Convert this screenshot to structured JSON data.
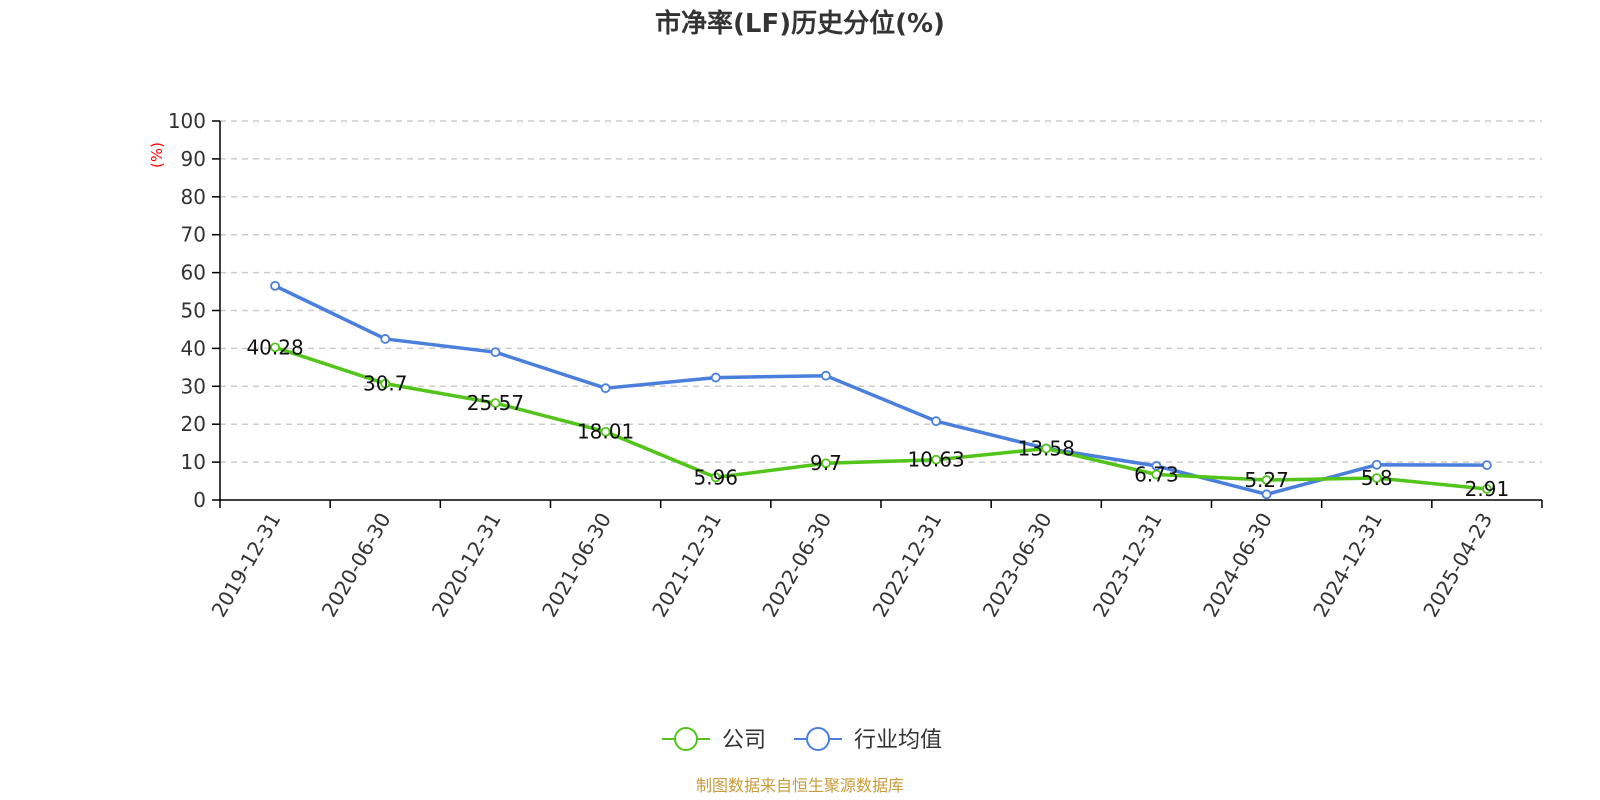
{
  "chart_data": {
    "type": "line",
    "title": "市净率(LF)历史分位(%)",
    "ylabel": "(%)",
    "ylim": [
      0,
      100
    ],
    "yticks": [
      0,
      10,
      20,
      30,
      40,
      50,
      60,
      70,
      80,
      90,
      100
    ],
    "categories": [
      "2019-12-31",
      "2020-06-30",
      "2020-12-31",
      "2021-06-30",
      "2021-12-31",
      "2022-06-30",
      "2022-12-31",
      "2023-06-30",
      "2023-12-31",
      "2024-06-30",
      "2024-12-31",
      "2025-04-23"
    ],
    "series": [
      {
        "name": "公司",
        "color": "#52c41a",
        "values": [
          40.28,
          30.7,
          25.57,
          18.01,
          5.96,
          9.7,
          10.63,
          13.58,
          6.73,
          5.27,
          5.8,
          2.91
        ],
        "labels": [
          "40.28",
          "30.7",
          "25.57",
          "18.01",
          "5.96",
          "9.7",
          "10.63",
          "13.58",
          "6.73",
          "5.27",
          "5.8",
          "2.91"
        ]
      },
      {
        "name": "行业均值",
        "color": "#4a7fdc",
        "values": [
          56.5,
          42.5,
          39.0,
          29.5,
          32.3,
          32.8,
          20.8,
          13.6,
          9.0,
          1.5,
          9.3,
          9.2
        ]
      }
    ],
    "grid": true,
    "legend": "bottom-center"
  },
  "source_note": "制图数据来自恒生聚源数据库",
  "colors": {
    "axis": "#000000",
    "grid": "#cccccc",
    "unit_label": "#ff0000",
    "source_note": "#c89b3c"
  }
}
